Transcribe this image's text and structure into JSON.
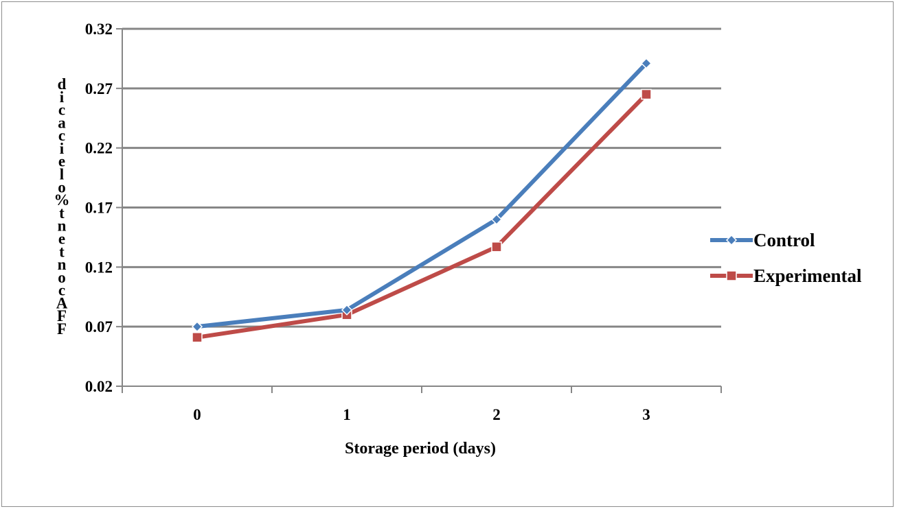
{
  "chart_data": {
    "type": "line",
    "title": "",
    "xlabel": "Storage period (days)",
    "ylabel": "FFA content % oleic acid",
    "categories": [
      "0",
      "1",
      "2",
      "3"
    ],
    "yticks": [
      "0.02",
      "0.07",
      "0.12",
      "0.17",
      "0.22",
      "0.27",
      "0.32"
    ],
    "ylim": [
      0.02,
      0.32
    ],
    "grid": true,
    "legend_position": "right",
    "series": [
      {
        "name": "Control",
        "values": [
          0.07,
          0.084,
          0.16,
          0.291
        ],
        "color": "#4A7EBB",
        "marker": "diamond"
      },
      {
        "name": "Experimental",
        "values": [
          0.061,
          0.08,
          0.137,
          0.265
        ],
        "color": "#BE4B48",
        "marker": "square"
      }
    ]
  }
}
